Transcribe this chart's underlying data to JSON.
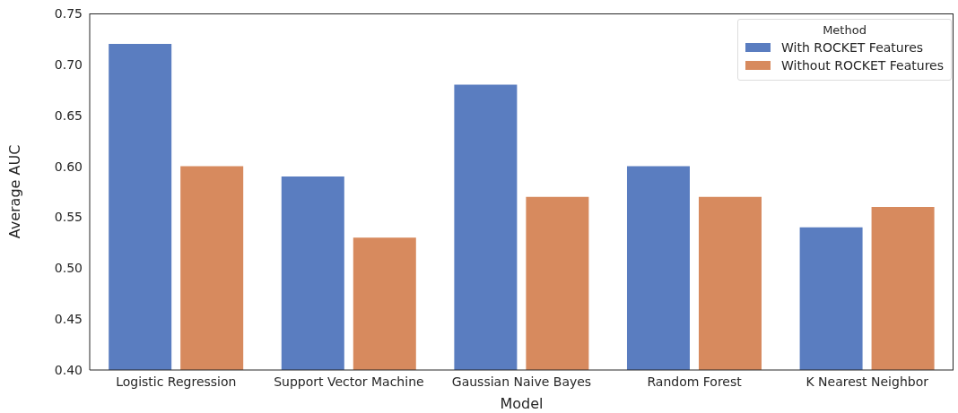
{
  "chart_data": {
    "type": "bar",
    "xlabel": "Model",
    "ylabel": "Average AUC",
    "legend_title": "Method",
    "categories": [
      "Logistic Regression",
      "Support Vector Machine",
      "Gaussian Naive Bayes",
      "Random Forest",
      "K Nearest Neighbor"
    ],
    "series": [
      {
        "name": "With ROCKET Features",
        "color": "#5a7dc0",
        "values": [
          0.72,
          0.59,
          0.68,
          0.6,
          0.54
        ]
      },
      {
        "name": "Without ROCKET Features",
        "color": "#d78a5e",
        "values": [
          0.6,
          0.53,
          0.57,
          0.57,
          0.56
        ]
      }
    ],
    "ylim": [
      0.4,
      0.75
    ],
    "yticks": [
      {
        "value": 0.4,
        "label": "0.40"
      },
      0.45,
      {
        "value": 0.5,
        "label": "0.50"
      },
      0.55,
      {
        "value": 0.6,
        "label": "0.60"
      },
      0.65,
      {
        "value": 0.7,
        "label": "0.70"
      },
      0.75
    ],
    "grid": false,
    "legend": "top right"
  }
}
